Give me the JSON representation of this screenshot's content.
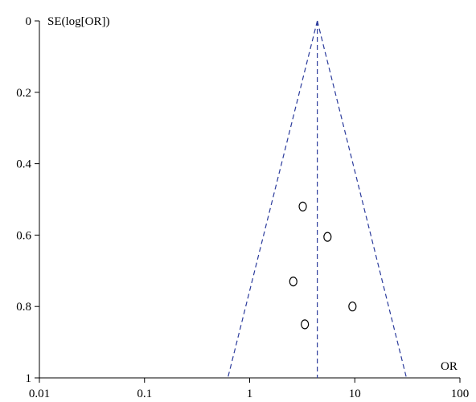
{
  "chart_data": {
    "type": "scatter",
    "title": "",
    "xlabel": "OR",
    "ylabel": "SE(log[OR])",
    "x_scale": "log10",
    "y_reversed": true,
    "xlim": [
      0.01,
      100
    ],
    "ylim": [
      0,
      1
    ],
    "x_ticks": [
      0.01,
      0.1,
      1,
      10,
      100
    ],
    "x_tick_labels": [
      "0.01",
      "0.1",
      "1",
      "10",
      "100"
    ],
    "y_ticks": [
      0,
      0.2,
      0.4,
      0.6,
      0.8,
      1
    ],
    "y_tick_labels": [
      "0",
      "0.2",
      "0.4",
      "0.6",
      "0.8",
      "1"
    ],
    "grid": false,
    "line_color": "#2b3b9c",
    "pooled_or": 4.4,
    "funnel_apex_se": 0,
    "funnel_base_se": 1,
    "funnel_lower_or_at_base": 0.62,
    "funnel_upper_or_at_base": 31,
    "points": [
      {
        "x": 3.2,
        "y": 0.52
      },
      {
        "x": 5.5,
        "y": 0.605
      },
      {
        "x": 2.6,
        "y": 0.73
      },
      {
        "x": 9.5,
        "y": 0.8
      },
      {
        "x": 3.35,
        "y": 0.85
      }
    ]
  }
}
